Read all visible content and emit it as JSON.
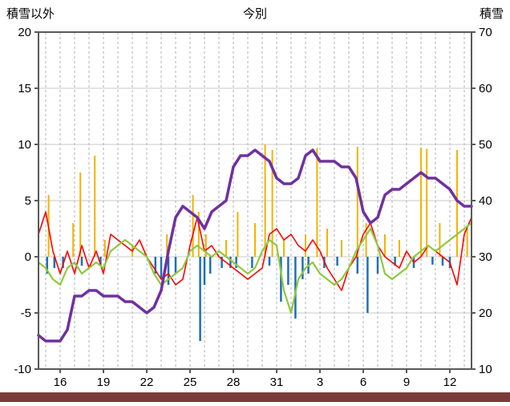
{
  "colors": {
    "bottom_bar": "#7a3b3b",
    "plot_border": "#595959",
    "grid_h": "#c8c8c8",
    "grid_v": "#b0b0b0"
  },
  "chart_data": {
    "type": "line",
    "title": "今別",
    "left_axis": {
      "label": "積雪以外",
      "min": -10,
      "max": 20,
      "ticks": [
        20,
        15,
        10,
        5,
        0,
        -5,
        -10
      ]
    },
    "right_axis": {
      "label": "積雪",
      "min": 10,
      "max": 70,
      "ticks": [
        70,
        60,
        50,
        40,
        30,
        20,
        10
      ]
    },
    "x_axis": {
      "min": 14.5,
      "max": 44.5,
      "day_grid_step": 1,
      "tick_positions": [
        16,
        19,
        22,
        25,
        28,
        31,
        34,
        37,
        40,
        43
      ],
      "tick_labels": [
        "16",
        "19",
        "22",
        "25",
        "28",
        "31",
        "3",
        "6",
        "9",
        "12"
      ]
    },
    "grid": {
      "horizontal": "solid",
      "vertical": "dashed-daily"
    },
    "legend": "none",
    "series": [
      {
        "name": "orange-spikes",
        "type": "spike",
        "axis": "left",
        "color": "#f2b300",
        "width": 2,
        "baseline": 0,
        "events": [
          {
            "x": 15.2,
            "v": 5.5
          },
          {
            "x": 16.9,
            "v": 3
          },
          {
            "x": 17.4,
            "v": 7.5
          },
          {
            "x": 18.4,
            "v": 9
          },
          {
            "x": 19.1,
            "v": 1.5
          },
          {
            "x": 21.0,
            "v": 1
          },
          {
            "x": 23.4,
            "v": 2
          },
          {
            "x": 25.2,
            "v": 5.5
          },
          {
            "x": 25.6,
            "v": 4
          },
          {
            "x": 26.1,
            "v": 2
          },
          {
            "x": 27.5,
            "v": 1.5
          },
          {
            "x": 28.3,
            "v": 4
          },
          {
            "x": 29.5,
            "v": 3
          },
          {
            "x": 30.2,
            "v": 10
          },
          {
            "x": 30.7,
            "v": 9.5
          },
          {
            "x": 31.5,
            "v": 1.5
          },
          {
            "x": 33.0,
            "v": 2
          },
          {
            "x": 33.8,
            "v": 9.7
          },
          {
            "x": 34.5,
            "v": 2.5
          },
          {
            "x": 35.5,
            "v": 1.5
          },
          {
            "x": 36.6,
            "v": 9.8
          },
          {
            "x": 37.2,
            "v": 3
          },
          {
            "x": 38.5,
            "v": 2
          },
          {
            "x": 39.5,
            "v": 1.5
          },
          {
            "x": 41.0,
            "v": 9.7
          },
          {
            "x": 41.4,
            "v": 9.6
          },
          {
            "x": 42.3,
            "v": 3
          },
          {
            "x": 43.5,
            "v": 9.5
          },
          {
            "x": 44.2,
            "v": 2.5
          }
        ]
      },
      {
        "name": "blue-bars",
        "type": "bar",
        "axis": "left",
        "color": "#1f6fb5",
        "width": 2.5,
        "baseline": 0,
        "events": [
          {
            "x": 15.1,
            "v": -1.5
          },
          {
            "x": 15.6,
            "v": -1
          },
          {
            "x": 16.2,
            "v": -1
          },
          {
            "x": 17.5,
            "v": -0.8
          },
          {
            "x": 18.8,
            "v": -0.7
          },
          {
            "x": 22.6,
            "v": -1.5
          },
          {
            "x": 23.0,
            "v": -2
          },
          {
            "x": 23.5,
            "v": -2.5
          },
          {
            "x": 24.0,
            "v": -1.5
          },
          {
            "x": 25.7,
            "v": -7.5
          },
          {
            "x": 26.0,
            "v": -2.5
          },
          {
            "x": 26.4,
            "v": -1.5
          },
          {
            "x": 27.2,
            "v": -1
          },
          {
            "x": 27.8,
            "v": -1
          },
          {
            "x": 28.2,
            "v": -1
          },
          {
            "x": 29.3,
            "v": -1
          },
          {
            "x": 30.5,
            "v": -0.8
          },
          {
            "x": 31.3,
            "v": -4
          },
          {
            "x": 31.8,
            "v": -2.5
          },
          {
            "x": 32.3,
            "v": -5.5
          },
          {
            "x": 32.8,
            "v": -2
          },
          {
            "x": 33.2,
            "v": -1.5
          },
          {
            "x": 34.3,
            "v": -1
          },
          {
            "x": 35.2,
            "v": -0.8
          },
          {
            "x": 36.6,
            "v": -1.5
          },
          {
            "x": 37.3,
            "v": -5
          },
          {
            "x": 38.0,
            "v": -1.5
          },
          {
            "x": 39.2,
            "v": -0.8
          },
          {
            "x": 40.5,
            "v": -1
          },
          {
            "x": 41.8,
            "v": -0.7
          },
          {
            "x": 42.5,
            "v": -0.8
          },
          {
            "x": 43.0,
            "v": -1
          }
        ]
      },
      {
        "name": "red-line",
        "type": "line",
        "axis": "left",
        "color": "#ff0000",
        "width": 1.6,
        "x_start": 14.5,
        "x_step": 0.5,
        "values": [
          2,
          4,
          0.5,
          -1.5,
          0.5,
          -1.5,
          1,
          -1,
          0.5,
          -1.5,
          2,
          1.5,
          1,
          0.5,
          1.5,
          0,
          -1,
          -2,
          -1.5,
          -2.5,
          -2,
          1,
          3.5,
          0.5,
          1,
          0,
          -0.5,
          -1,
          -1.5,
          -2,
          -1.5,
          -1,
          2,
          2.5,
          1.5,
          2,
          1,
          0.5,
          1.5,
          0.5,
          -1,
          -2,
          -3,
          -1,
          0,
          2,
          3,
          1,
          0,
          -0.5,
          -1,
          0.5,
          -0.5,
          0,
          1,
          0.5,
          0,
          -0.5,
          -2.5,
          2,
          3.5
        ]
      },
      {
        "name": "green-line",
        "type": "line",
        "axis": "left",
        "color": "#8fc93c",
        "width": 2.2,
        "x_start": 14.5,
        "x_step": 0.5,
        "values": [
          -0.5,
          -1,
          -2,
          -2.5,
          -1,
          -0.5,
          -1.5,
          -1,
          -0.5,
          -1,
          0.5,
          1,
          1.5,
          1,
          0.5,
          0,
          -1.5,
          -2.5,
          -2,
          -1.5,
          -1,
          0.5,
          1,
          0.5,
          0,
          0.5,
          0,
          -0.5,
          -1,
          -1.5,
          -1,
          0.5,
          1.5,
          1,
          -3,
          -5,
          -2,
          -1,
          -0.5,
          -1.5,
          -2,
          -2.5,
          -2,
          -1,
          0.5,
          1.5,
          2.5,
          1,
          -1.5,
          -2,
          -1.5,
          -1,
          0,
          0.5,
          1,
          0.5,
          1,
          1.5,
          2,
          2.5,
          3
        ]
      },
      {
        "name": "snow-depth-line",
        "type": "line",
        "axis": "right",
        "color": "#7030a0",
        "width": 3.5,
        "x_start": 14.5,
        "x_step": 0.5,
        "values": [
          16,
          15,
          15,
          15,
          17,
          23,
          23,
          24,
          24,
          23,
          23,
          23,
          22,
          22,
          21,
          20,
          21,
          24,
          31,
          37,
          39,
          38,
          37,
          35,
          38,
          39,
          40,
          46,
          48,
          48,
          49,
          48,
          47,
          44,
          43,
          43,
          44,
          48,
          49,
          47,
          47,
          47,
          46,
          46,
          44,
          38,
          36,
          37,
          41,
          42,
          42,
          43,
          44,
          45,
          44,
          44,
          43,
          42,
          40,
          39,
          39
        ]
      }
    ]
  }
}
